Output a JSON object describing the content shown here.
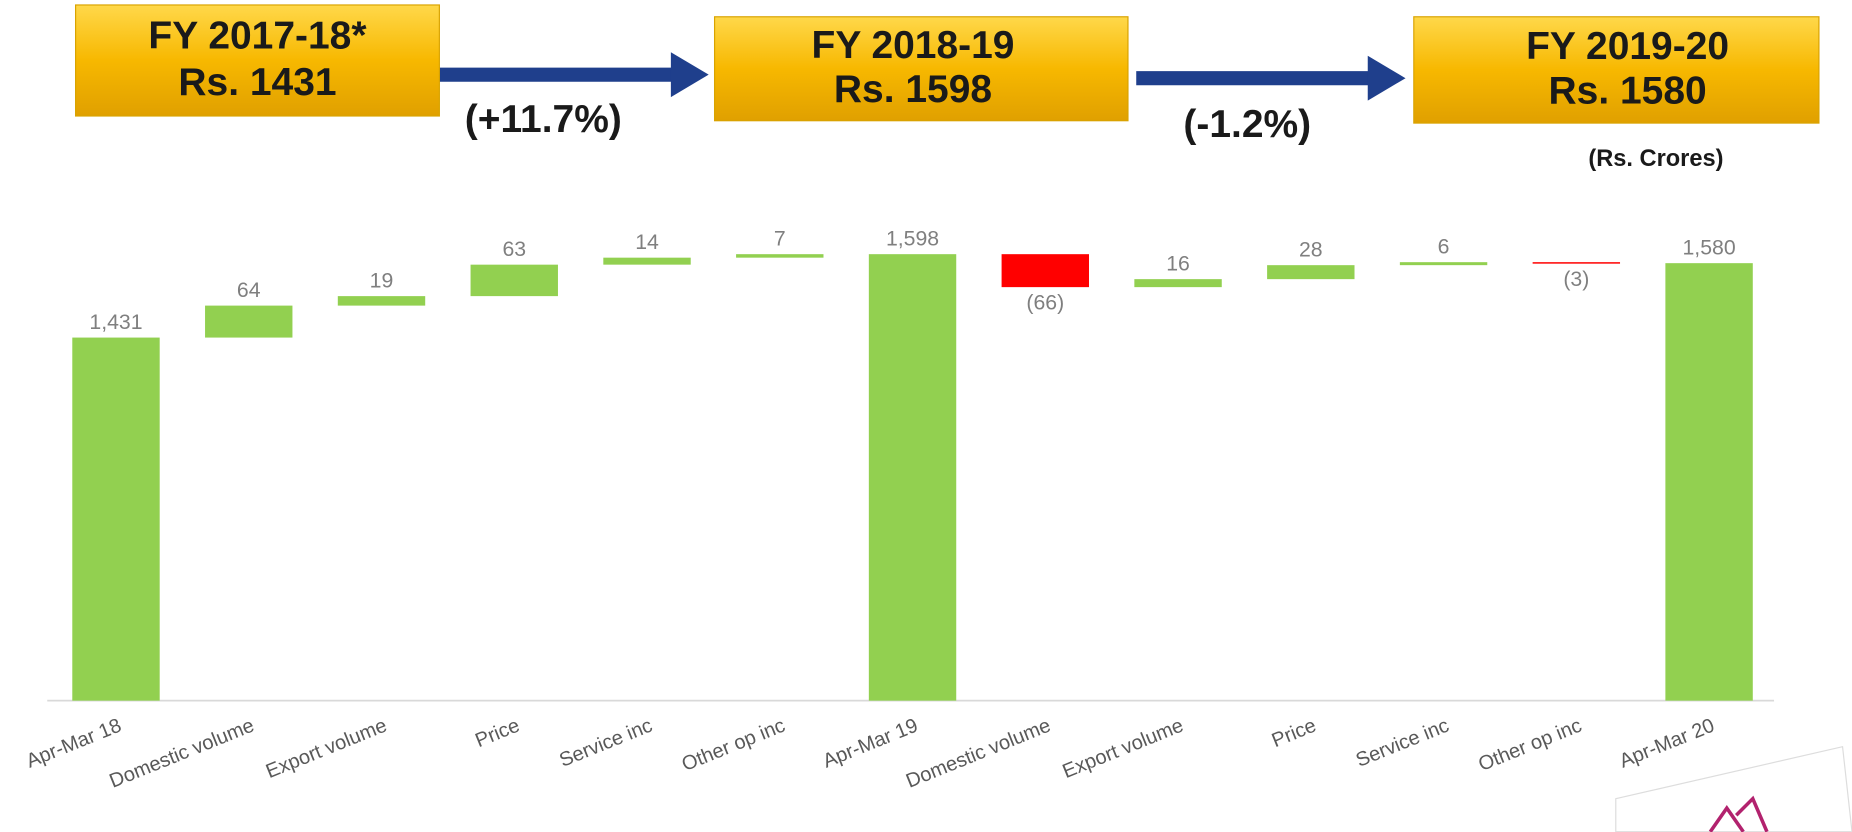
{
  "chart_data": {
    "type": "waterfall",
    "header_boxes": [
      {
        "lines": [
          "FY 2017-18*",
          "Rs. 1431"
        ]
      },
      {
        "lines": [
          "FY 2018-19",
          "Rs. 1598"
        ]
      },
      {
        "lines": [
          "FY 2019-20",
          "Rs. 1580"
        ]
      }
    ],
    "changes": [
      "(+11.7%)",
      "(-1.2%)"
    ],
    "unit": "(Rs. Crores)",
    "categories": [
      "Apr-Mar 18",
      "Domestic volume",
      "Export volume",
      "Price",
      "Service inc",
      "Other op inc",
      "Apr-Mar 19",
      "Domestic volume",
      "Export volume",
      "Price",
      "Service inc",
      "Other op inc",
      "Apr-Mar 20"
    ],
    "values": [
      1431,
      64,
      19,
      63,
      14,
      7,
      1598,
      -66,
      16,
      28,
      6,
      -3,
      1580
    ],
    "value_labels": [
      "1,431",
      "64",
      "19",
      "63",
      "14",
      "7",
      "1,598",
      "(66)",
      "16",
      "28",
      "6",
      "(3)",
      "1,580"
    ],
    "totals": [
      0,
      6,
      12
    ],
    "positive_color": "#92d050",
    "negative_color": "#ff0000",
    "ylim": [
      704,
      1650
    ]
  }
}
